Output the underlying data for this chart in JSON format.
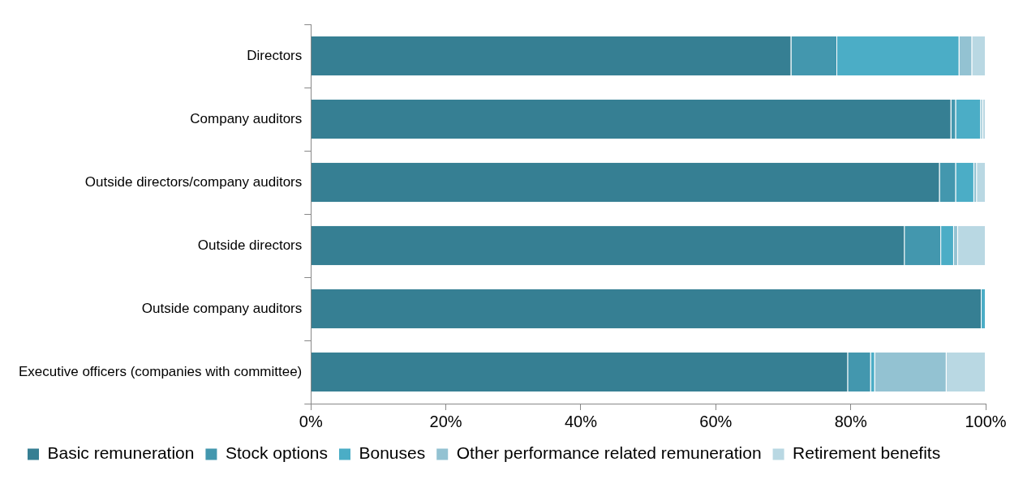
{
  "chart_data": {
    "type": "bar",
    "orientation": "horizontal",
    "stacked": true,
    "categories": [
      "Directors",
      "Company auditors",
      "Outside directors/company auditors",
      "Outside directors",
      "Outside company auditors",
      "Executive officers (companies with committee)"
    ],
    "series": [
      {
        "name": "Basic remuneration",
        "color": "#367f93",
        "values": [
          71.2,
          94.9,
          93.2,
          88.0,
          99.4,
          79.6
        ]
      },
      {
        "name": "Stock options",
        "color": "#4397ae",
        "values": [
          6.8,
          0.7,
          2.4,
          5.4,
          0,
          3.4
        ]
      },
      {
        "name": "Bonuses",
        "color": "#4badc6",
        "values": [
          18.1,
          3.7,
          2.7,
          1.9,
          0.6,
          0.6
        ]
      },
      {
        "name": "Other performance related remuneration",
        "color": "#93c2d2",
        "values": [
          1.9,
          0.3,
          0.4,
          0.6,
          0,
          10.6
        ]
      },
      {
        "name": "Retirement benefits",
        "color": "#b9d8e3",
        "values": [
          2.0,
          0.4,
          1.3,
          4.1,
          0,
          5.8
        ]
      }
    ],
    "xlim": [
      0,
      100
    ],
    "xticks": [
      {
        "value": 0,
        "label": "0%"
      },
      {
        "value": 20,
        "label": "20%"
      },
      {
        "value": 40,
        "label": "40%"
      },
      {
        "value": 60,
        "label": "60%"
      },
      {
        "value": 80,
        "label": "80%"
      },
      {
        "value": 100,
        "label": "100%"
      }
    ],
    "grid": false,
    "legend": "bottom"
  }
}
